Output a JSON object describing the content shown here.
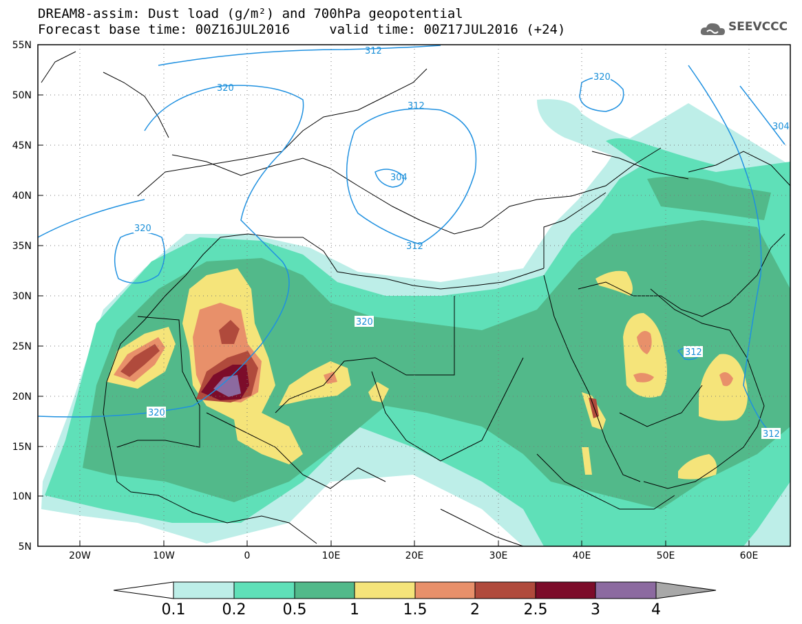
{
  "header": {
    "title_line1": "DREAM8-assim: Dust load (g/m²) and 700hPa geopotential",
    "title_line2": "Forecast base time: 00Z16JUL2016     valid time: 00Z17JUL2016 (+24)",
    "logo_text": "SEEVCCC"
  },
  "axes": {
    "lat_labels": [
      "55N",
      "50N",
      "45N",
      "40N",
      "35N",
      "30N",
      "25N",
      "20N",
      "15N",
      "10N",
      "5N"
    ],
    "lon_labels": [
      "20W",
      "10W",
      "0",
      "10E",
      "20E",
      "30E",
      "40E",
      "50E",
      "60E"
    ]
  },
  "contours": {
    "labels": [
      "312",
      "320",
      "320",
      "312",
      "304",
      "312",
      "320",
      "320",
      "320",
      "304",
      "312",
      "312"
    ],
    "line_color": "#1e90e0"
  },
  "colorbar": {
    "labels": [
      "0.1",
      "0.2",
      "0.5",
      "1",
      "1.5",
      "2",
      "2.5",
      "3",
      "4"
    ],
    "colors": [
      "#ffffff",
      "#bdeee8",
      "#5fe0b8",
      "#52b98a",
      "#f5e47a",
      "#e8906a",
      "#b04a3c",
      "#7c0c2a",
      "#8c6aa0",
      "#a8a8a8"
    ]
  }
}
